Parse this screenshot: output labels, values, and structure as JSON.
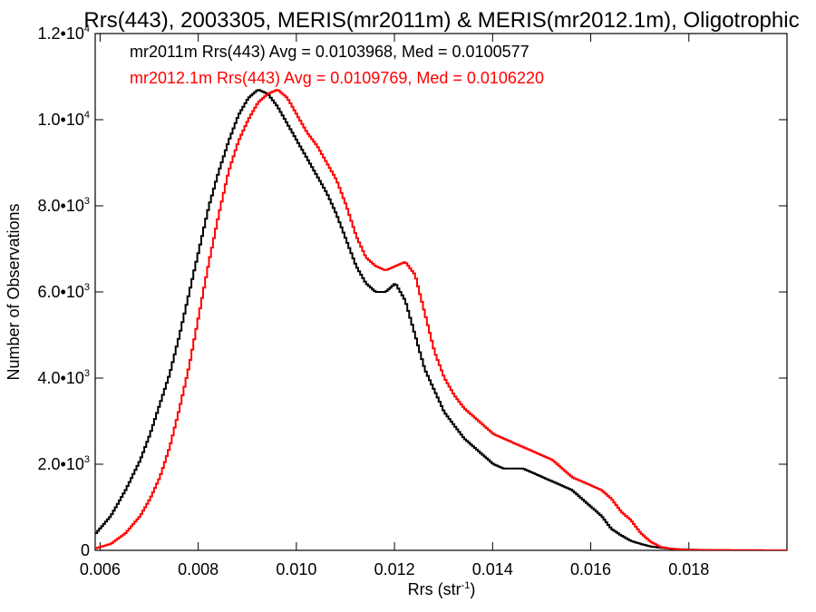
{
  "chart_data": {
    "type": "line",
    "step": true,
    "title": "Rrs(443), 2003305, MERIS(mr2011m) & MERIS(mr2012.1m), Oligotrophic",
    "xlabel": "Rrs (str",
    "xlabel_sup": "-1",
    "xlabel_close": ")",
    "ylabel": "Number of Observations",
    "xlim": [
      0.0059,
      0.02
    ],
    "ylim": [
      0,
      12000
    ],
    "grid": false,
    "x_ticks": [
      {
        "value": 0.006,
        "label": "0.006"
      },
      {
        "value": 0.008,
        "label": "0.008"
      },
      {
        "value": 0.01,
        "label": "0.010"
      },
      {
        "value": 0.012,
        "label": "0.012"
      },
      {
        "value": 0.014,
        "label": "0.014"
      },
      {
        "value": 0.016,
        "label": "0.016"
      },
      {
        "value": 0.018,
        "label": "0.018"
      }
    ],
    "y_ticks": [
      {
        "value": 0,
        "label": "0",
        "exp": ""
      },
      {
        "value": 2000,
        "label": "2.0•10",
        "exp": "3"
      },
      {
        "value": 4000,
        "label": "4.0•10",
        "exp": "3"
      },
      {
        "value": 6000,
        "label": "6.0•10",
        "exp": "3"
      },
      {
        "value": 8000,
        "label": "8.0•10",
        "exp": "3"
      },
      {
        "value": 10000,
        "label": "1.0•10",
        "exp": "4"
      },
      {
        "value": 12000,
        "label": "1.2•10",
        "exp": "4"
      }
    ],
    "annotations": [
      {
        "text": "mr2011m Rrs(443) Avg = 0.0103968, Med = 0.0100577",
        "color": "#000000"
      },
      {
        "text": "mr2012.1m Rrs(443) Avg = 0.0109769, Med = 0.0106220",
        "color": "#ff0000"
      }
    ],
    "series": [
      {
        "color": "#000000",
        "x": [
          0.0059,
          0.0062,
          0.0065,
          0.0068,
          0.007,
          0.0072,
          0.0074,
          0.0076,
          0.0078,
          0.008,
          0.0082,
          0.0084,
          0.0086,
          0.0088,
          0.009,
          0.0092,
          0.0094,
          0.0096,
          0.0098,
          0.01,
          0.0102,
          0.0104,
          0.0106,
          0.0108,
          0.011,
          0.0112,
          0.0114,
          0.0116,
          0.0118,
          0.012,
          0.0122,
          0.0124,
          0.0126,
          0.0128,
          0.013,
          0.0132,
          0.0134,
          0.0136,
          0.0138,
          0.014,
          0.0142,
          0.0144,
          0.0146,
          0.0148,
          0.015,
          0.0152,
          0.0154,
          0.0156,
          0.0158,
          0.016,
          0.0162,
          0.0164,
          0.0166,
          0.0168,
          0.017,
          0.0172,
          0.0174,
          0.0176,
          0.0178,
          0.018,
          0.0185,
          0.019,
          0.02
        ],
        "y": [
          400,
          800,
          1400,
          2100,
          2700,
          3400,
          4100,
          5000,
          6000,
          7000,
          8000,
          8800,
          9500,
          10100,
          10500,
          10700,
          10600,
          10300,
          9900,
          9500,
          9100,
          8700,
          8300,
          7800,
          7200,
          6600,
          6200,
          6000,
          6000,
          6200,
          5800,
          5000,
          4200,
          3700,
          3200,
          2900,
          2600,
          2400,
          2200,
          2000,
          1900,
          1900,
          1900,
          1800,
          1700,
          1600,
          1500,
          1400,
          1200,
          1000,
          800,
          500,
          350,
          220,
          150,
          90,
          60,
          40,
          25,
          15,
          5,
          2,
          0
        ]
      },
      {
        "color": "#ff0000",
        "x": [
          0.0059,
          0.0062,
          0.0065,
          0.0068,
          0.007,
          0.0072,
          0.0074,
          0.0076,
          0.0078,
          0.008,
          0.0082,
          0.0084,
          0.0086,
          0.0088,
          0.009,
          0.0092,
          0.0094,
          0.0096,
          0.0098,
          0.01,
          0.0102,
          0.0104,
          0.0106,
          0.0108,
          0.011,
          0.0112,
          0.0114,
          0.0116,
          0.0118,
          0.012,
          0.0122,
          0.0124,
          0.0126,
          0.0128,
          0.013,
          0.0132,
          0.0134,
          0.0136,
          0.0138,
          0.014,
          0.0142,
          0.0144,
          0.0146,
          0.0148,
          0.015,
          0.0152,
          0.0154,
          0.0156,
          0.0158,
          0.016,
          0.0162,
          0.0164,
          0.0166,
          0.0168,
          0.017,
          0.0172,
          0.0174,
          0.0176,
          0.0178,
          0.018,
          0.0185,
          0.019,
          0.02
        ],
        "y": [
          50,
          150,
          400,
          800,
          1200,
          1700,
          2400,
          3300,
          4300,
          5500,
          6700,
          7800,
          8800,
          9500,
          10000,
          10400,
          10600,
          10700,
          10500,
          10100,
          9700,
          9400,
          9000,
          8600,
          8000,
          7300,
          6800,
          6600,
          6500,
          6600,
          6700,
          6400,
          5500,
          4600,
          4000,
          3600,
          3300,
          3100,
          2900,
          2700,
          2600,
          2500,
          2400,
          2300,
          2200,
          2100,
          1900,
          1700,
          1600,
          1500,
          1400,
          1200,
          900,
          700,
          400,
          200,
          80,
          40,
          20,
          10,
          5,
          2,
          0
        ]
      }
    ]
  }
}
